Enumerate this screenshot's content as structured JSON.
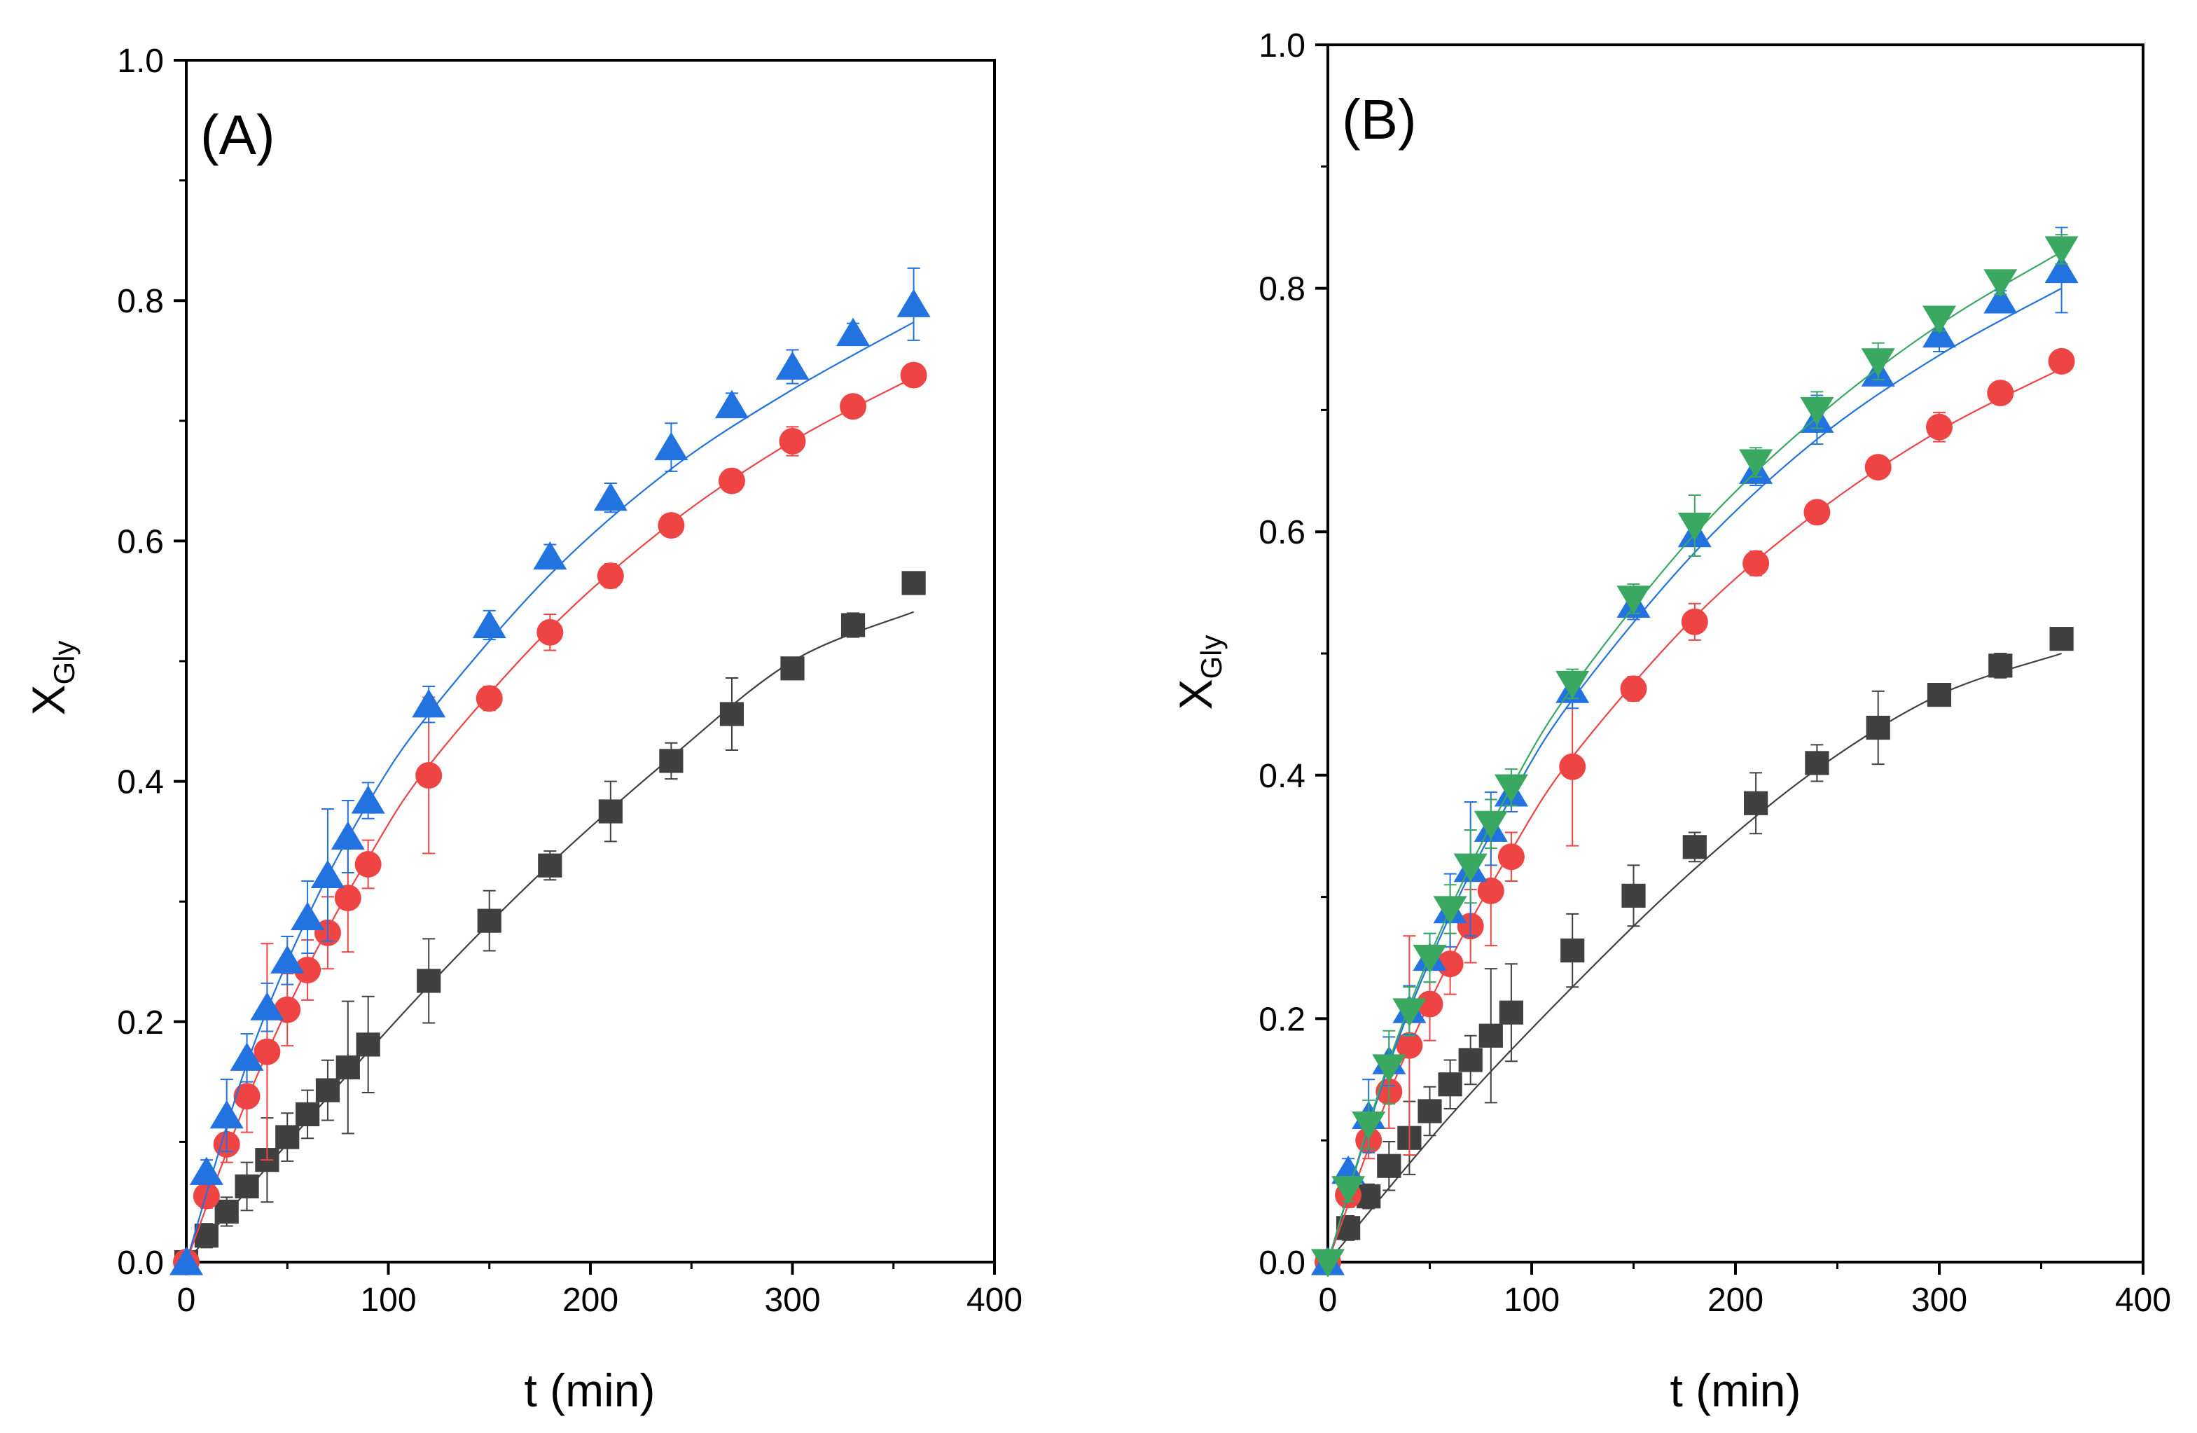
{
  "chart_data": [
    {
      "type": "scatter",
      "panel_label": "(A)",
      "xlabel": "t (min)",
      "ylabel": {
        "main": "X",
        "sub": "Gly"
      },
      "xlim": [
        0,
        400
      ],
      "ylim": [
        0,
        1.0
      ],
      "xticks": [
        "0",
        "100",
        "200",
        "300",
        "400"
      ],
      "yticks": [
        "0.0",
        "0.2",
        "0.4",
        "0.6",
        "0.8",
        "1.0"
      ],
      "grid": false,
      "legend": "none",
      "series": [
        {
          "marker": "square",
          "color": "#404040",
          "x": [
            0,
            10,
            20,
            30,
            40,
            50,
            60,
            70,
            80,
            90,
            120,
            150,
            180,
            210,
            240,
            270,
            300,
            330,
            360
          ],
          "y": [
            0.0,
            0.022,
            0.042,
            0.063,
            0.085,
            0.104,
            0.123,
            0.143,
            0.162,
            0.181,
            0.234,
            0.284,
            0.33,
            0.375,
            0.417,
            0.456,
            0.494,
            0.53,
            0.565
          ],
          "err": [
            0,
            0.01,
            0.012,
            0.02,
            0.035,
            0.02,
            0.02,
            0.025,
            0.055,
            0.04,
            0.035,
            0.025,
            0.012,
            0.025,
            0.015,
            0.03,
            0.008,
            0.01,
            0.006
          ],
          "fit": [
            [
              0,
              0.0
            ],
            [
              60,
              0.118
            ],
            [
              120,
              0.23
            ],
            [
              180,
              0.331
            ],
            [
              240,
              0.42
            ],
            [
              300,
              0.5
            ],
            [
              360,
              0.541
            ]
          ]
        },
        {
          "marker": "circle",
          "color": "#ee4444",
          "x": [
            0,
            10,
            20,
            30,
            40,
            50,
            60,
            70,
            80,
            90,
            120,
            150,
            180,
            210,
            240,
            270,
            300,
            330,
            360
          ],
          "y": [
            0.0,
            0.055,
            0.098,
            0.138,
            0.175,
            0.21,
            0.243,
            0.274,
            0.303,
            0.331,
            0.405,
            0.469,
            0.524,
            0.571,
            0.613,
            0.65,
            0.683,
            0.712,
            0.738
          ],
          "err": [
            0,
            0.01,
            0.015,
            0.03,
            0.09,
            0.03,
            0.025,
            0.03,
            0.045,
            0.02,
            0.065,
            0.01,
            0.015,
            0.01,
            0.008,
            0.008,
            0.012,
            0.008,
            0.008
          ],
          "fit": [
            [
              0,
              0.0
            ],
            [
              30,
              0.135
            ],
            [
              60,
              0.245
            ],
            [
              90,
              0.336
            ],
            [
              120,
              0.413
            ],
            [
              180,
              0.527
            ],
            [
              240,
              0.615
            ],
            [
              300,
              0.683
            ],
            [
              360,
              0.736
            ]
          ]
        },
        {
          "marker": "triangle-up",
          "color": "#2272e0",
          "x": [
            0,
            10,
            20,
            30,
            40,
            50,
            60,
            70,
            80,
            90,
            120,
            150,
            180,
            210,
            240,
            270,
            300,
            330,
            360
          ],
          "y": [
            0.0,
            0.075,
            0.122,
            0.17,
            0.212,
            0.251,
            0.287,
            0.322,
            0.354,
            0.384,
            0.464,
            0.53,
            0.587,
            0.636,
            0.678,
            0.713,
            0.745,
            0.773,
            0.797
          ],
          "err": [
            0,
            0.01,
            0.03,
            0.02,
            0.02,
            0.02,
            0.03,
            0.055,
            0.03,
            0.015,
            0.015,
            0.012,
            0.01,
            0.012,
            0.02,
            0.01,
            0.014,
            0.008,
            0.03
          ],
          "fit": [
            [
              0,
              0.0
            ],
            [
              30,
              0.165
            ],
            [
              60,
              0.287
            ],
            [
              90,
              0.382
            ],
            [
              120,
              0.456
            ],
            [
              180,
              0.572
            ],
            [
              240,
              0.66
            ],
            [
              300,
              0.726
            ],
            [
              360,
              0.782
            ]
          ]
        }
      ]
    },
    {
      "type": "scatter",
      "panel_label": "(B)",
      "xlabel": "t (min)",
      "ylabel": {
        "main": "X",
        "sub": "Gly"
      },
      "xlim": [
        0,
        400
      ],
      "ylim": [
        0,
        1.0
      ],
      "xticks": [
        "0",
        "100",
        "200",
        "300",
        "400"
      ],
      "yticks": [
        "0.0",
        "0.2",
        "0.4",
        "0.6",
        "0.8",
        "1.0"
      ],
      "grid": false,
      "legend": "none",
      "series": [
        {
          "marker": "square",
          "color": "#404040",
          "x": [
            0,
            10,
            20,
            30,
            40,
            50,
            60,
            70,
            80,
            90,
            120,
            150,
            180,
            210,
            240,
            270,
            300,
            330,
            360
          ],
          "y": [
            0.0,
            0.028,
            0.054,
            0.079,
            0.102,
            0.124,
            0.146,
            0.166,
            0.186,
            0.205,
            0.256,
            0.301,
            0.341,
            0.377,
            0.41,
            0.439,
            0.466,
            0.49,
            0.512
          ],
          "err": [
            0,
            0.01,
            0.01,
            0.02,
            0.03,
            0.02,
            0.02,
            0.02,
            0.055,
            0.04,
            0.03,
            0.025,
            0.012,
            0.025,
            0.015,
            0.03,
            0.008,
            0.01,
            0.008
          ],
          "fit": [
            [
              0,
              0.0
            ],
            [
              60,
              0.12
            ],
            [
              120,
              0.226
            ],
            [
              180,
              0.323
            ],
            [
              240,
              0.405
            ],
            [
              300,
              0.466
            ],
            [
              360,
              0.5
            ]
          ]
        },
        {
          "marker": "circle",
          "color": "#ee4444",
          "x": [
            0,
            10,
            20,
            30,
            40,
            50,
            60,
            70,
            80,
            90,
            120,
            150,
            180,
            210,
            240,
            270,
            300,
            330,
            360
          ],
          "y": [
            0.0,
            0.055,
            0.1,
            0.14,
            0.178,
            0.212,
            0.245,
            0.276,
            0.305,
            0.333,
            0.407,
            0.471,
            0.526,
            0.574,
            0.616,
            0.653,
            0.686,
            0.714,
            0.74
          ],
          "err": [
            0,
            0.01,
            0.015,
            0.03,
            0.09,
            0.03,
            0.025,
            0.03,
            0.045,
            0.02,
            0.065,
            0.01,
            0.015,
            0.01,
            0.008,
            0.008,
            0.012,
            0.008,
            0.008
          ],
          "fit": [
            [
              0,
              0.0
            ],
            [
              30,
              0.138
            ],
            [
              60,
              0.248
            ],
            [
              90,
              0.338
            ],
            [
              120,
              0.415
            ],
            [
              180,
              0.53
            ],
            [
              240,
              0.616
            ],
            [
              300,
              0.683
            ],
            [
              360,
              0.734
            ]
          ]
        },
        {
          "marker": "triangle-up",
          "color": "#2272e0",
          "x": [
            0,
            10,
            20,
            30,
            40,
            50,
            60,
            70,
            80,
            90,
            120,
            150,
            180,
            210,
            240,
            270,
            300,
            330,
            360
          ],
          "y": [
            0.0,
            0.075,
            0.12,
            0.165,
            0.207,
            0.25,
            0.289,
            0.323,
            0.356,
            0.385,
            0.47,
            0.54,
            0.598,
            0.65,
            0.692,
            0.73,
            0.762,
            0.79,
            0.815
          ],
          "err": [
            0,
            0.01,
            0.03,
            0.02,
            0.02,
            0.02,
            0.03,
            0.055,
            0.03,
            0.015,
            0.015,
            0.012,
            0.01,
            0.012,
            0.02,
            0.01,
            0.014,
            0.008,
            0.035
          ],
          "fit": [
            [
              0,
              0.0
            ],
            [
              30,
              0.162
            ],
            [
              60,
              0.285
            ],
            [
              90,
              0.382
            ],
            [
              120,
              0.462
            ],
            [
              180,
              0.583
            ],
            [
              240,
              0.676
            ],
            [
              300,
              0.745
            ],
            [
              360,
              0.8
            ]
          ]
        },
        {
          "marker": "triangle-down",
          "color": "#3aa860",
          "x": [
            0,
            10,
            20,
            30,
            40,
            50,
            60,
            70,
            80,
            90,
            120,
            150,
            180,
            210,
            240,
            270,
            300,
            330,
            360
          ],
          "y": [
            0.0,
            0.06,
            0.113,
            0.16,
            0.206,
            0.25,
            0.29,
            0.325,
            0.36,
            0.39,
            0.475,
            0.545,
            0.605,
            0.657,
            0.7,
            0.74,
            0.775,
            0.805,
            0.832
          ],
          "err": [
            0,
            0.01,
            0.02,
            0.03,
            0.02,
            0.02,
            0.02,
            0.03,
            0.02,
            0.015,
            0.012,
            0.012,
            0.025,
            0.012,
            0.015,
            0.015,
            0.01,
            0.01,
            0.012
          ],
          "fit": [
            [
              0,
              0.0
            ],
            [
              30,
              0.165
            ],
            [
              60,
              0.29
            ],
            [
              90,
              0.39
            ],
            [
              120,
              0.472
            ],
            [
              180,
              0.598
            ],
            [
              240,
              0.694
            ],
            [
              300,
              0.77
            ],
            [
              360,
              0.83
            ]
          ]
        }
      ]
    }
  ]
}
